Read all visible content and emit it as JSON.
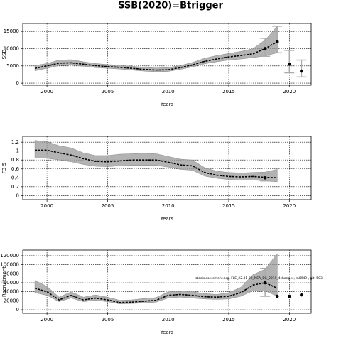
{
  "title": "SSB(2020)=Btrigger",
  "chart_data": [
    {
      "type": "line",
      "ylabel": "SSB",
      "xlabel": "Years",
      "xlim": [
        1998,
        2021.8
      ],
      "xticks": [
        2000,
        2005,
        2010,
        2015,
        2020
      ],
      "ylim": [
        -600,
        17300
      ],
      "yticks": [
        0,
        5000,
        10000,
        15000
      ],
      "grid": true,
      "x": [
        1999,
        2000,
        2001,
        2002,
        2003,
        2004,
        2005,
        2006,
        2007,
        2008,
        2009,
        2010,
        2011,
        2012,
        2013,
        2014,
        2015,
        2016,
        2017,
        2018,
        2019
      ],
      "values": [
        4300,
        5000,
        5800,
        5900,
        5500,
        5100,
        4800,
        4600,
        4300,
        4000,
        3800,
        3900,
        4500,
        5300,
        6300,
        7000,
        7600,
        8000,
        8500,
        10000,
        12000
      ],
      "band": {
        "lower": [
          3600,
          4300,
          5100,
          5200,
          4900,
          4500,
          4300,
          4100,
          3800,
          3500,
          3300,
          3400,
          4000,
          4700,
          5600,
          6200,
          6700,
          7000,
          7400,
          7900,
          8800
        ],
        "upper": [
          5100,
          5700,
          6700,
          6800,
          6200,
          5700,
          5400,
          5200,
          4900,
          4600,
          4400,
          4500,
          5100,
          6000,
          7200,
          8000,
          8600,
          9200,
          10000,
          12500,
          16500
        ]
      },
      "points": {
        "x": [
          2018,
          2019,
          2020,
          2021
        ],
        "values": [
          10000,
          12000,
          5500,
          3500
        ],
        "lower": [
          7800,
          8800,
          3000,
          1800
        ],
        "upper": [
          13000,
          16500,
          9500,
          6700
        ]
      }
    },
    {
      "type": "line",
      "ylabel": "F3-5",
      "xlabel": "Years",
      "xlim": [
        1998,
        2021.8
      ],
      "xticks": [
        2000,
        2005,
        2010,
        2015,
        2020
      ],
      "ylim": [
        -0.09,
        1.33
      ],
      "yticks": [
        0,
        0.2,
        0.4,
        0.6,
        0.8,
        1,
        1.2
      ],
      "grid": true,
      "x": [
        1999,
        2000,
        2001,
        2002,
        2003,
        2004,
        2005,
        2006,
        2007,
        2008,
        2009,
        2010,
        2011,
        2012,
        2013,
        2014,
        2015,
        2016,
        2017,
        2018,
        2019
      ],
      "values": [
        1.02,
        1.02,
        0.96,
        0.91,
        0.83,
        0.77,
        0.76,
        0.78,
        0.8,
        0.8,
        0.8,
        0.75,
        0.69,
        0.67,
        0.52,
        0.46,
        0.43,
        0.42,
        0.43,
        0.41,
        0.4
      ],
      "band": {
        "lower": [
          0.84,
          0.84,
          0.8,
          0.76,
          0.7,
          0.66,
          0.65,
          0.67,
          0.68,
          0.68,
          0.68,
          0.64,
          0.59,
          0.57,
          0.44,
          0.39,
          0.36,
          0.35,
          0.35,
          0.33,
          0.31
        ],
        "upper": [
          1.24,
          1.21,
          1.12,
          1.07,
          0.96,
          0.9,
          0.9,
          0.93,
          0.94,
          0.95,
          0.94,
          0.88,
          0.82,
          0.8,
          0.63,
          0.55,
          0.52,
          0.51,
          0.52,
          0.53,
          0.59
        ]
      },
      "points": {
        "x": [
          2018
        ],
        "values": [
          0.4
        ],
        "lower": [
          0.33
        ],
        "upper": [
          0.49
        ]
      }
    },
    {
      "type": "line",
      "ylabel": "Recruitment",
      "xlabel": "Years",
      "annotation": "stockassessment.org, FLE_22.81-32_NEA_EG_2019_4changes, m0949 , git: 503",
      "xlim": [
        1998,
        2021.8
      ],
      "xticks": [
        2000,
        2005,
        2010,
        2015,
        2020
      ],
      "ylim": [
        -7900,
        132600
      ],
      "yticks": [
        0,
        20000,
        40000,
        60000,
        80000,
        100000,
        120000
      ],
      "grid": true,
      "x": [
        1999,
        2000,
        2001,
        2002,
        2003,
        2004,
        2005,
        2006,
        2007,
        2008,
        2009,
        2010,
        2011,
        2012,
        2013,
        2014,
        2015,
        2016,
        2017,
        2018,
        2019
      ],
      "values": [
        48000,
        40000,
        22000,
        32000,
        22000,
        26000,
        22000,
        16000,
        17000,
        19000,
        21000,
        32000,
        34000,
        32000,
        29000,
        28000,
        30000,
        38000,
        55000,
        60000,
        48000
      ],
      "band": {
        "lower": [
          38000,
          32000,
          18000,
          26000,
          18000,
          21000,
          18000,
          13000,
          14000,
          15000,
          17000,
          26000,
          28000,
          26000,
          24000,
          23000,
          24000,
          30000,
          42000,
          42000,
          30000
        ],
        "upper": [
          65000,
          52000,
          28000,
          40000,
          28000,
          33000,
          28000,
          21000,
          22000,
          25000,
          27000,
          40000,
          42000,
          40000,
          36000,
          34000,
          38000,
          50000,
          78000,
          90000,
          125000
        ]
      },
      "points": {
        "x": [
          2018,
          2019,
          2020,
          2021
        ],
        "values": [
          60000,
          30000,
          30000,
          33000
        ],
        "lower": [
          30000,
          null,
          null,
          null
        ],
        "upper": [
          92000,
          null,
          null,
          null
        ]
      }
    }
  ]
}
